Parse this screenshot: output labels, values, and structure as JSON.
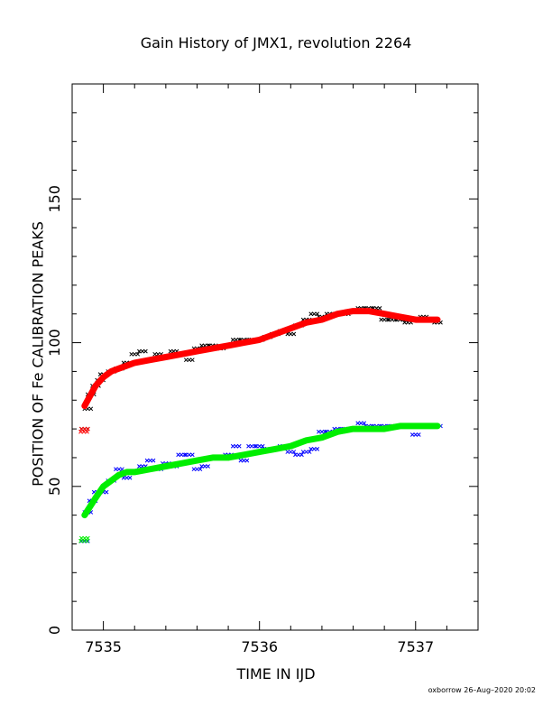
{
  "chart_data": {
    "type": "scatter",
    "title": "Gain History of JMX1, revolution 2264",
    "xlabel": "TIME IN IJD",
    "ylabel": "POSITION OF Fe CALIBRATION PEAKS",
    "xlim": [
      7534.8,
      7537.4
    ],
    "ylim": [
      0,
      190
    ],
    "x_ticks": [
      7535,
      7536,
      7537
    ],
    "y_ticks": [
      0,
      50,
      100,
      150
    ],
    "grid": false,
    "series": [
      {
        "color": "#000000",
        "marker": "x",
        "x": [
          7534.88,
          7534.9,
          7534.92,
          7534.95,
          7534.98,
          7535.0,
          7535.05,
          7535.1,
          7535.15,
          7535.2,
          7535.25,
          7535.3,
          7535.35,
          7535.4,
          7535.45,
          7535.5,
          7535.55,
          7535.6,
          7535.65,
          7535.7,
          7535.75,
          7535.8,
          7535.85,
          7535.9,
          7535.95,
          7536.0,
          7536.05,
          7536.1,
          7536.15,
          7536.2,
          7536.25,
          7536.3,
          7536.35,
          7536.4,
          7536.45,
          7536.5,
          7536.55,
          7536.6,
          7536.65,
          7536.7,
          7536.75,
          7536.8,
          7536.85,
          7536.9,
          7536.95,
          7537.0,
          7537.05,
          7537.1,
          7537.14
        ],
        "y": [
          70,
          77,
          82,
          85,
          87,
          89,
          90,
          91,
          93,
          96,
          97,
          94,
          96,
          95,
          97,
          96,
          94,
          98,
          99,
          99,
          98,
          99,
          101,
          101,
          101,
          101,
          102,
          103,
          104,
          103,
          106,
          108,
          110,
          109,
          110,
          110,
          110,
          111,
          112,
          112,
          112,
          108,
          108,
          108,
          107,
          108,
          109,
          108,
          107
        ]
      },
      {
        "color": "#0000ff",
        "marker": "x",
        "x": [
          7534.88,
          7534.9,
          7534.93,
          7534.96,
          7535.0,
          7535.05,
          7535.1,
          7535.15,
          7535.2,
          7535.25,
          7535.3,
          7535.35,
          7535.4,
          7535.45,
          7535.5,
          7535.55,
          7535.6,
          7535.65,
          7535.7,
          7535.75,
          7535.8,
          7535.85,
          7535.9,
          7535.95,
          7536.0,
          7536.05,
          7536.1,
          7536.15,
          7536.2,
          7536.25,
          7536.3,
          7536.35,
          7536.4,
          7536.45,
          7536.5,
          7536.55,
          7536.6,
          7536.65,
          7536.7,
          7536.75,
          7536.8,
          7536.85,
          7536.9,
          7536.95,
          7537.0,
          7537.05,
          7537.1,
          7537.14
        ],
        "y": [
          31,
          41,
          45,
          48,
          48,
          52,
          56,
          53,
          55,
          57,
          59,
          56,
          58,
          57,
          61,
          61,
          56,
          57,
          60,
          60,
          61,
          64,
          59,
          64,
          64,
          63,
          63,
          64,
          62,
          61,
          62,
          63,
          69,
          69,
          70,
          70,
          70,
          72,
          71,
          71,
          71,
          71,
          71,
          71,
          68,
          71,
          71,
          71
        ]
      },
      {
        "color": "#ff0000",
        "marker": "line",
        "x": [
          7534.88,
          7534.95,
          7535.0,
          7535.05,
          7535.1,
          7535.15,
          7535.2,
          7535.3,
          7535.4,
          7535.5,
          7535.6,
          7535.7,
          7535.8,
          7535.9,
          7536.0,
          7536.1,
          7536.2,
          7536.3,
          7536.4,
          7536.5,
          7536.6,
          7536.65,
          7536.7,
          7536.8,
          7536.9,
          7537.0,
          7537.1,
          7537.14
        ],
        "y": [
          78,
          85,
          88,
          90,
          91,
          92,
          93,
          94,
          95,
          96,
          97,
          98,
          99,
          100,
          101,
          103,
          105,
          107,
          108,
          110,
          111,
          111,
          111,
          110,
          109,
          108,
          108,
          108
        ]
      },
      {
        "color": "#00ee00",
        "marker": "line",
        "x": [
          7534.88,
          7534.95,
          7535.0,
          7535.05,
          7535.1,
          7535.15,
          7535.2,
          7535.3,
          7535.4,
          7535.5,
          7535.6,
          7535.7,
          7535.8,
          7535.9,
          7536.0,
          7536.1,
          7536.2,
          7536.3,
          7536.4,
          7536.5,
          7536.6,
          7536.65,
          7536.7,
          7536.8,
          7536.9,
          7537.0,
          7537.1,
          7537.14
        ],
        "y": [
          40,
          46,
          50,
          52,
          54,
          55,
          55,
          56,
          57,
          58,
          59,
          60,
          60,
          61,
          62,
          63,
          64,
          66,
          67,
          69,
          70,
          70,
          70,
          70,
          71,
          71,
          71,
          71
        ]
      },
      {
        "color": "#ff0000",
        "marker": "x",
        "x": [
          7534.875,
          7534.88
        ],
        "y": [
          69,
          70
        ]
      },
      {
        "color": "#00ee00",
        "marker": "x",
        "x": [
          7534.875,
          7534.88
        ],
        "y": [
          31,
          32
        ]
      }
    ],
    "credit": "oxborrow 26–Aug–2020 20:02"
  }
}
